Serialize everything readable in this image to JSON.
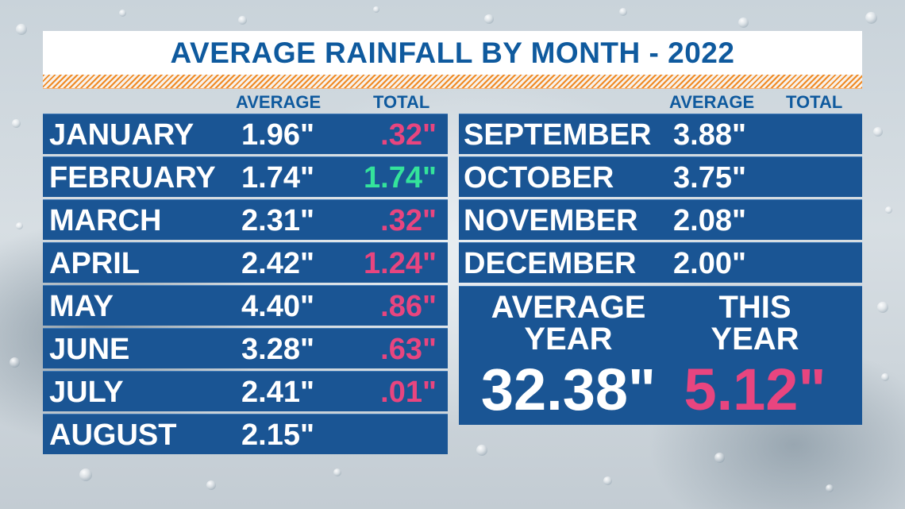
{
  "title": "AVERAGE RAINFALL BY MONTH - 2022",
  "headers": {
    "left": {
      "average": "AVERAGE",
      "total": "TOTAL"
    },
    "right": {
      "average": "AVERAGE",
      "total": "TOTAL"
    }
  },
  "months_left": [
    {
      "month": "JANUARY",
      "average": "1.96\"",
      "total": ".32\"",
      "total_color": "#e8457f"
    },
    {
      "month": "FEBRUARY",
      "average": "1.74\"",
      "total": "1.74\"",
      "total_color": "#34e39b"
    },
    {
      "month": "MARCH",
      "average": "2.31\"",
      "total": ".32\"",
      "total_color": "#e8457f"
    },
    {
      "month": "APRIL",
      "average": "2.42\"",
      "total": "1.24\"",
      "total_color": "#e8457f"
    },
    {
      "month": "MAY",
      "average": "4.40\"",
      "total": ".86\"",
      "total_color": "#e8457f"
    },
    {
      "month": "JUNE",
      "average": "3.28\"",
      "total": ".63\"",
      "total_color": "#e8457f"
    },
    {
      "month": "JULY",
      "average": "2.41\"",
      "total": ".01\"",
      "total_color": "#e8457f"
    },
    {
      "month": "AUGUST",
      "average": "2.15\"",
      "total": ""
    }
  ],
  "months_right": [
    {
      "month": "SEPTEMBER",
      "average": "3.88\"",
      "total": ""
    },
    {
      "month": "OCTOBER",
      "average": "3.75\"",
      "total": ""
    },
    {
      "month": "NOVEMBER",
      "average": "2.08\"",
      "total": ""
    },
    {
      "month": "DECEMBER",
      "average": "2.00\"",
      "total": ""
    }
  ],
  "summary": {
    "average_year_label_1": "AVERAGE",
    "average_year_label_2": "YEAR",
    "average_year_value": "32.38\"",
    "this_year_label_1": "THIS",
    "this_year_label_2": "YEAR",
    "this_year_value": "5.12\""
  },
  "colors": {
    "panel_blue": "#1a5594",
    "title_blue": "#0f5a9e",
    "below_average": "#e8457f",
    "at_average": "#34e39b",
    "stripe_orange": "#f08a24"
  }
}
